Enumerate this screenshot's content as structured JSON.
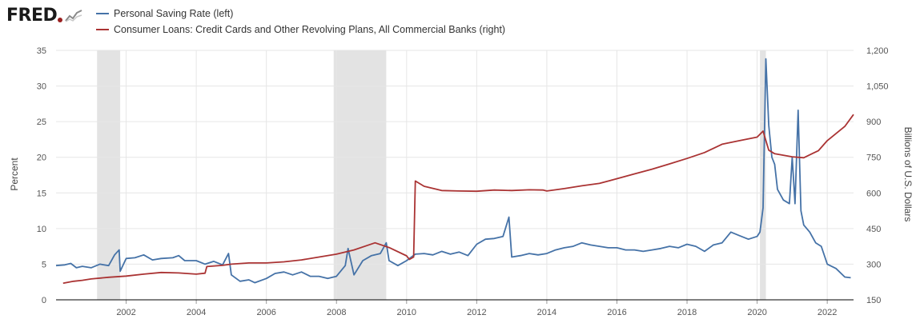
{
  "logo": {
    "text": "FRED"
  },
  "colors": {
    "left_series": "#4572a7",
    "right_series": "#aa3333",
    "recession": "#e3e3e3",
    "grid": "#e6e6e6",
    "axis": "#000000"
  },
  "chart_data": {
    "type": "line",
    "legend_placement": "top-left",
    "grid": true,
    "ylabel_left": "Percent",
    "ylabel_right": "Billions of U.S. Dollars",
    "ylim_left": [
      0,
      35
    ],
    "ylim_right": [
      150,
      1200
    ],
    "xlim": [
      2000.0,
      2022.75
    ],
    "yticks_left": [
      "0",
      "5",
      "10",
      "15",
      "20",
      "25",
      "30",
      "35"
    ],
    "yticks_right": [
      "150",
      "300",
      "450",
      "600",
      "750",
      "900",
      "1,050",
      "1,200"
    ],
    "xticks": [
      "2002",
      "2004",
      "2006",
      "2008",
      "2010",
      "2012",
      "2014",
      "2016",
      "2018",
      "2020",
      "2022"
    ],
    "recessions": [
      [
        2001.17,
        2001.83
      ],
      [
        2007.92,
        2009.42
      ],
      [
        2020.08,
        2020.25
      ]
    ],
    "series": [
      {
        "name": "Personal Saving Rate (left)",
        "axis": "left",
        "points": [
          [
            2000.0,
            4.8
          ],
          [
            2000.25,
            4.9
          ],
          [
            2000.42,
            5.1
          ],
          [
            2000.58,
            4.5
          ],
          [
            2000.75,
            4.7
          ],
          [
            2001.0,
            4.5
          ],
          [
            2001.25,
            5.0
          ],
          [
            2001.5,
            4.8
          ],
          [
            2001.67,
            6.3
          ],
          [
            2001.8,
            7.0
          ],
          [
            2001.83,
            4.0
          ],
          [
            2002.0,
            5.8
          ],
          [
            2002.25,
            5.9
          ],
          [
            2002.5,
            6.3
          ],
          [
            2002.75,
            5.6
          ],
          [
            2003.0,
            5.8
          ],
          [
            2003.33,
            5.9
          ],
          [
            2003.5,
            6.2
          ],
          [
            2003.67,
            5.5
          ],
          [
            2004.0,
            5.5
          ],
          [
            2004.25,
            5.0
          ],
          [
            2004.5,
            5.4
          ],
          [
            2004.75,
            4.9
          ],
          [
            2004.92,
            6.5
          ],
          [
            2005.0,
            3.5
          ],
          [
            2005.25,
            2.6
          ],
          [
            2005.5,
            2.8
          ],
          [
            2005.67,
            2.4
          ],
          [
            2006.0,
            3.0
          ],
          [
            2006.25,
            3.7
          ],
          [
            2006.5,
            3.9
          ],
          [
            2006.75,
            3.5
          ],
          [
            2007.0,
            3.9
          ],
          [
            2007.25,
            3.3
          ],
          [
            2007.5,
            3.3
          ],
          [
            2007.75,
            3.0
          ],
          [
            2008.0,
            3.3
          ],
          [
            2008.25,
            4.8
          ],
          [
            2008.33,
            7.2
          ],
          [
            2008.5,
            3.5
          ],
          [
            2008.75,
            5.5
          ],
          [
            2009.0,
            6.2
          ],
          [
            2009.25,
            6.5
          ],
          [
            2009.42,
            8.0
          ],
          [
            2009.5,
            5.5
          ],
          [
            2009.75,
            4.8
          ],
          [
            2010.0,
            5.5
          ],
          [
            2010.25,
            6.4
          ],
          [
            2010.5,
            6.5
          ],
          [
            2010.75,
            6.3
          ],
          [
            2011.0,
            6.8
          ],
          [
            2011.25,
            6.4
          ],
          [
            2011.5,
            6.7
          ],
          [
            2011.75,
            6.2
          ],
          [
            2012.0,
            7.8
          ],
          [
            2012.25,
            8.5
          ],
          [
            2012.5,
            8.6
          ],
          [
            2012.75,
            8.9
          ],
          [
            2012.92,
            11.6
          ],
          [
            2013.0,
            6.0
          ],
          [
            2013.25,
            6.2
          ],
          [
            2013.5,
            6.5
          ],
          [
            2013.75,
            6.3
          ],
          [
            2014.0,
            6.5
          ],
          [
            2014.25,
            7.0
          ],
          [
            2014.5,
            7.3
          ],
          [
            2014.75,
            7.5
          ],
          [
            2015.0,
            8.0
          ],
          [
            2015.25,
            7.7
          ],
          [
            2015.5,
            7.5
          ],
          [
            2015.75,
            7.3
          ],
          [
            2016.0,
            7.3
          ],
          [
            2016.25,
            7.0
          ],
          [
            2016.5,
            7.0
          ],
          [
            2016.75,
            6.8
          ],
          [
            2017.0,
            7.0
          ],
          [
            2017.25,
            7.2
          ],
          [
            2017.5,
            7.5
          ],
          [
            2017.75,
            7.3
          ],
          [
            2018.0,
            7.8
          ],
          [
            2018.25,
            7.5
          ],
          [
            2018.5,
            6.8
          ],
          [
            2018.75,
            7.7
          ],
          [
            2019.0,
            8.0
          ],
          [
            2019.25,
            9.5
          ],
          [
            2019.5,
            9.0
          ],
          [
            2019.75,
            8.5
          ],
          [
            2020.0,
            8.9
          ],
          [
            2020.08,
            9.5
          ],
          [
            2020.17,
            12.9
          ],
          [
            2020.25,
            33.8
          ],
          [
            2020.33,
            24.5
          ],
          [
            2020.42,
            20.0
          ],
          [
            2020.5,
            19.0
          ],
          [
            2020.58,
            15.5
          ],
          [
            2020.75,
            14.0
          ],
          [
            2020.92,
            13.5
          ],
          [
            2021.0,
            20.0
          ],
          [
            2021.08,
            13.5
          ],
          [
            2021.17,
            26.6
          ],
          [
            2021.25,
            12.5
          ],
          [
            2021.33,
            10.5
          ],
          [
            2021.5,
            9.5
          ],
          [
            2021.67,
            8.0
          ],
          [
            2021.83,
            7.5
          ],
          [
            2022.0,
            5.0
          ],
          [
            2022.25,
            4.4
          ],
          [
            2022.5,
            3.2
          ],
          [
            2022.67,
            3.1
          ]
        ]
      },
      {
        "name": "Consumer Loans: Credit Cards and Other Revolving Plans, All Commercial Banks (right)",
        "axis": "right",
        "points": [
          [
            2000.2,
            220
          ],
          [
            2000.5,
            228
          ],
          [
            2000.75,
            232
          ],
          [
            2001.0,
            238
          ],
          [
            2001.5,
            245
          ],
          [
            2002.0,
            250
          ],
          [
            2002.5,
            258
          ],
          [
            2003.0,
            265
          ],
          [
            2003.5,
            263
          ],
          [
            2004.0,
            258
          ],
          [
            2004.25,
            262
          ],
          [
            2004.3,
            290
          ],
          [
            2004.75,
            295
          ],
          [
            2005.0,
            300
          ],
          [
            2005.5,
            305
          ],
          [
            2006.0,
            305
          ],
          [
            2006.5,
            310
          ],
          [
            2007.0,
            318
          ],
          [
            2007.5,
            330
          ],
          [
            2008.0,
            342
          ],
          [
            2008.5,
            360
          ],
          [
            2009.0,
            385
          ],
          [
            2009.1,
            390
          ],
          [
            2009.5,
            370
          ],
          [
            2010.0,
            335
          ],
          [
            2010.08,
            320
          ],
          [
            2010.2,
            330
          ],
          [
            2010.25,
            650
          ],
          [
            2010.5,
            628
          ],
          [
            2011.0,
            610
          ],
          [
            2011.5,
            608
          ],
          [
            2012.0,
            607
          ],
          [
            2012.5,
            612
          ],
          [
            2013.0,
            610
          ],
          [
            2013.5,
            613
          ],
          [
            2013.9,
            612
          ],
          [
            2014.0,
            608
          ],
          [
            2014.5,
            618
          ],
          [
            2015.0,
            630
          ],
          [
            2015.5,
            640
          ],
          [
            2016.0,
            660
          ],
          [
            2016.5,
            680
          ],
          [
            2017.0,
            700
          ],
          [
            2017.5,
            722
          ],
          [
            2018.0,
            745
          ],
          [
            2018.5,
            770
          ],
          [
            2019.0,
            805
          ],
          [
            2019.5,
            820
          ],
          [
            2020.0,
            835
          ],
          [
            2020.17,
            860
          ],
          [
            2020.33,
            780
          ],
          [
            2020.5,
            765
          ],
          [
            2021.0,
            752
          ],
          [
            2021.33,
            748
          ],
          [
            2021.75,
            778
          ],
          [
            2022.0,
            820
          ],
          [
            2022.5,
            880
          ],
          [
            2022.75,
            930
          ]
        ]
      }
    ]
  }
}
